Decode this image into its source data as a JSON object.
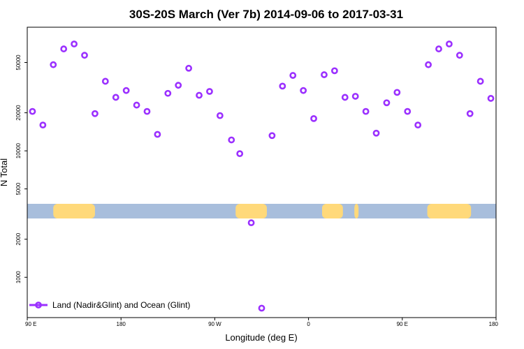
{
  "chart_data": {
    "type": "scatter",
    "title": "30S-20S March (Ver 7b)   2014-09-06 to 2017-03-31",
    "xlabel": "Longitude (deg E)",
    "ylabel": "N Total",
    "x_ticks": [
      {
        "pos": 0,
        "label": "90 E"
      },
      {
        "pos": 90,
        "label": "180"
      },
      {
        "pos": 180,
        "label": "90 W"
      },
      {
        "pos": 270,
        "label": "0"
      },
      {
        "pos": 360,
        "label": "90 E"
      },
      {
        "pos": 450,
        "label": "180"
      }
    ],
    "y_ticks": [
      {
        "value": 1000,
        "label": "1000"
      },
      {
        "value": 2000,
        "label": "2000"
      },
      {
        "value": 5000,
        "label": "5000"
      },
      {
        "value": 10000,
        "label": "10000"
      },
      {
        "value": 20000,
        "label": "20000"
      },
      {
        "value": 50000,
        "label": "50000"
      }
    ],
    "ylim": [
      480,
      95000
    ],
    "y_scale": "log",
    "xlim": [
      0,
      450
    ],
    "grid": false,
    "legend_position": "bottom-left",
    "colors": {
      "points": "#9b30ff",
      "land": "#ffd97a",
      "ocean": "#a8bedc"
    },
    "series": [
      {
        "name": "Land (Nadir&Glint) and Ocean (Glint)",
        "x": [
          5,
          15,
          25,
          35,
          45,
          55,
          65,
          75,
          85,
          95,
          105,
          115,
          125,
          135,
          145,
          155,
          165,
          175,
          185,
          196,
          204,
          215,
          225,
          235,
          245,
          255,
          265,
          275,
          285,
          295,
          305,
          315,
          325,
          335,
          345,
          355,
          365,
          375,
          385,
          395,
          405,
          415,
          425,
          435,
          445
        ],
        "y": [
          20500,
          16000,
          48000,
          64000,
          70000,
          57000,
          19700,
          35500,
          26500,
          30000,
          23000,
          20500,
          13500,
          28500,
          33000,
          45000,
          27500,
          29500,
          19000,
          12200,
          9500,
          2700,
          570,
          13200,
          32500,
          39500,
          30000,
          18000,
          40000,
          43000,
          26500,
          27000,
          20500,
          13800,
          24000,
          29000,
          20500,
          16000,
          48000,
          64000,
          70000,
          57000,
          19700,
          35500,
          26000
        ]
      }
    ],
    "surface_band": {
      "labels": "none",
      "land_segments_lon": [
        [
          25,
          65
        ],
        [
          200,
          230
        ],
        [
          283,
          303
        ],
        [
          314,
          318
        ],
        [
          384,
          426
        ]
      ]
    }
  }
}
